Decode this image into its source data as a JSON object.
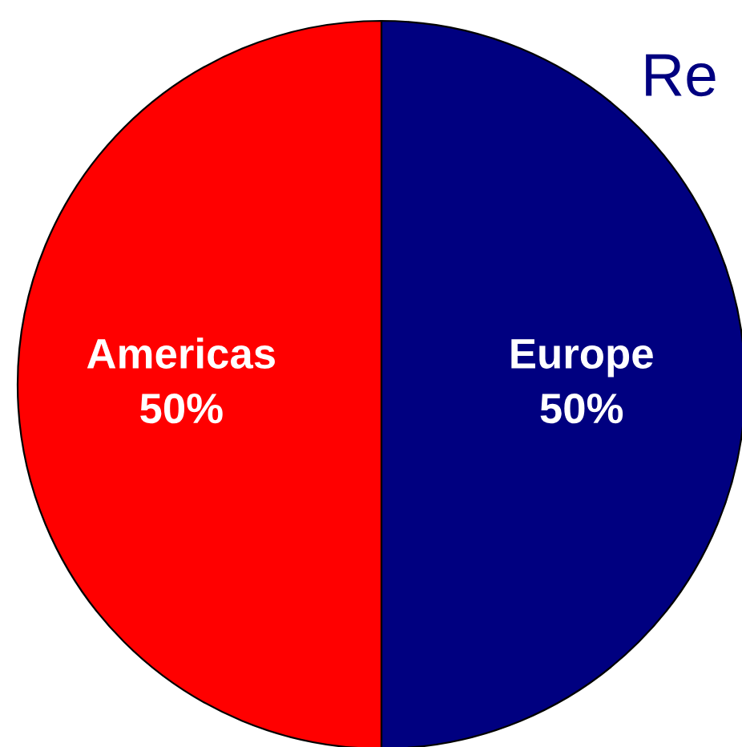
{
  "chart_data": {
    "type": "pie",
    "categories": [
      "Europe",
      "Americas"
    ],
    "values": [
      50,
      50
    ],
    "colors": [
      "#000080",
      "#ff0000"
    ],
    "value_labels": [
      "50%",
      "50%"
    ],
    "annotations": [
      "Re"
    ],
    "legend": false
  }
}
